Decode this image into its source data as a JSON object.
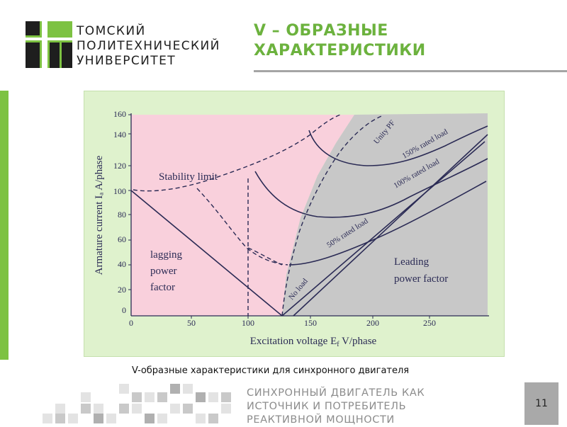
{
  "header": {
    "university_lines": [
      "ТОМСКИЙ",
      "ПОЛИТЕХНИЧЕСКИЙ",
      "УНИВЕРСИТЕТ"
    ],
    "slide_title_lines": [
      "V – ОБРАЗНЫЕ",
      "ХАРАКТЕРИСТИКИ"
    ]
  },
  "figure": {
    "y_axis_label": "Armature current Iₐ A/phase",
    "x_axis_label": "Excitation voltage E",
    "x_axis_label_sub": "f",
    "x_axis_label_tail": " V/phase",
    "y_ticks": [
      "160",
      "140",
      "120",
      "100",
      "80",
      "60",
      "40",
      "20",
      "0"
    ],
    "x_ticks": [
      "0",
      "50",
      "100",
      "150",
      "200",
      "250"
    ],
    "region_labels": {
      "stability": "Stability limit",
      "lagging": [
        "lagging",
        "power",
        "factor"
      ],
      "leading": [
        "Leading",
        "power factor"
      ]
    },
    "curve_labels": {
      "unity_pf": "Unity PF",
      "rated_150": "150% rated load",
      "rated_100": "100% rated load",
      "rated_50": "50% rated load",
      "no_load": "No load"
    },
    "colors": {
      "lagging_region": "#f9d0dc",
      "leading_region": "#c8c8c8",
      "frame": "#dff2cd",
      "curve_stroke": "#2b2b55"
    }
  },
  "caption": "V-образные характеристики для синхронного двигателя",
  "footer": {
    "subtitle_lines": [
      "СИНХРОННЫЙ ДВИГАТЕЛЬ КАК",
      "ИСТОЧНИК И ПОТРЕБИТЕЛЬ",
      "РЕАКТИВНОЙ МОЩНОСТИ"
    ],
    "page_number": "11"
  }
}
